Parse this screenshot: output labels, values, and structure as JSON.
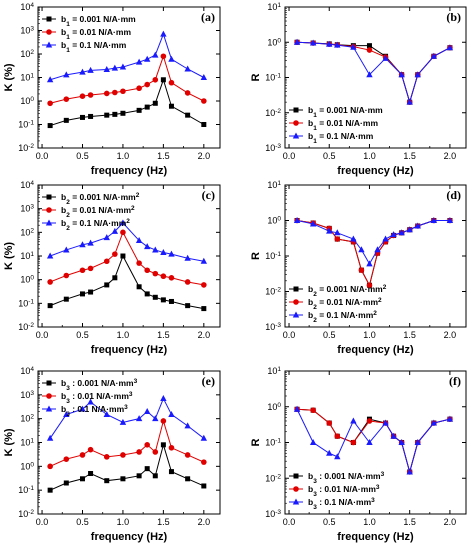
{
  "chart_data": [
    {
      "type": "line",
      "panel_label": "(a)",
      "xlabel": "frequency (Hz)",
      "ylabel": "K (%)",
      "log_y": true,
      "xlim": [
        -0.05,
        2.2
      ],
      "ylim": [
        0.01,
        10000
      ],
      "xticks": [
        0.0,
        0.5,
        1.0,
        1.5,
        2.0
      ],
      "xtick_labels": [
        "0.0",
        "0.5",
        "1.0",
        "1.5",
        "2.0"
      ],
      "yticks": [
        0.01,
        0.1,
        1,
        10,
        100,
        1000,
        10000
      ],
      "ytick_labels": [
        [
          "10",
          "-2"
        ],
        [
          "10",
          "-1"
        ],
        [
          "10",
          "0"
        ],
        [
          "10",
          "1"
        ],
        [
          "10",
          "2"
        ],
        [
          "10",
          "3"
        ],
        [
          "10",
          "4"
        ]
      ],
      "legend_position": "top-left",
      "series": [
        {
          "name": [
            "b",
            "1",
            "= 0.001 N/A·mm"
          ],
          "color": "#000000",
          "marker": "square",
          "x": [
            0.1,
            0.3,
            0.5,
            0.6,
            0.8,
            0.9,
            1.0,
            1.2,
            1.3,
            1.4,
            1.5,
            1.6,
            1.8,
            2.0
          ],
          "values": [
            0.09,
            0.15,
            0.2,
            0.22,
            0.25,
            0.27,
            0.3,
            0.4,
            0.55,
            0.8,
            8,
            0.6,
            0.25,
            0.1
          ]
        },
        {
          "name": [
            "b",
            "1",
            "= 0.01 N/A·mm"
          ],
          "color": "#e00000",
          "marker": "circle",
          "x": [
            0.1,
            0.3,
            0.5,
            0.6,
            0.8,
            0.9,
            1.0,
            1.2,
            1.3,
            1.4,
            1.5,
            1.6,
            1.8,
            2.0
          ],
          "values": [
            0.8,
            1.2,
            1.6,
            1.8,
            2.1,
            2.3,
            2.6,
            3.5,
            5,
            8,
            80,
            6,
            2.2,
            1
          ]
        },
        {
          "name": [
            "b",
            "1",
            "= 0.1 N/A·mm"
          ],
          "color": "#1a1aff",
          "marker": "triangle",
          "x": [
            0.1,
            0.3,
            0.5,
            0.6,
            0.8,
            0.9,
            1.0,
            1.2,
            1.3,
            1.4,
            1.5,
            1.6,
            1.8,
            2.0
          ],
          "values": [
            8,
            13,
            17,
            20,
            22,
            25,
            28,
            45,
            60,
            90,
            700,
            60,
            23,
            10
          ]
        }
      ]
    },
    {
      "type": "line",
      "panel_label": "(b)",
      "xlabel": "frequency (Hz)",
      "ylabel": "R",
      "log_y": true,
      "xlim": [
        -0.05,
        2.2
      ],
      "ylim": [
        0.001,
        10
      ],
      "xticks": [
        0.0,
        0.5,
        1.0,
        1.5,
        2.0
      ],
      "xtick_labels": [
        "0.0",
        "0.5",
        "1.0",
        "1.5",
        "2.0"
      ],
      "yticks": [
        0.001,
        0.01,
        0.1,
        1,
        10
      ],
      "ytick_labels": [
        [
          "10",
          "-3"
        ],
        [
          "10",
          "-2"
        ],
        [
          "10",
          "-1"
        ],
        [
          "10",
          "0"
        ],
        [
          "10",
          "1"
        ]
      ],
      "legend_position": "bottom-left",
      "series": [
        {
          "name": [
            "b",
            "1",
            "= 0.001 N/A·mm"
          ],
          "color": "#000000",
          "marker": "square",
          "x": [
            0.1,
            0.3,
            0.5,
            0.6,
            0.8,
            1.0,
            1.2,
            1.4,
            1.5,
            1.6,
            1.8,
            2.0
          ],
          "values": [
            1.0,
            0.95,
            0.9,
            0.85,
            0.8,
            0.8,
            0.4,
            0.12,
            0.02,
            0.12,
            0.4,
            0.7
          ]
        },
        {
          "name": [
            "b",
            "1",
            "= 0.01 N/A·mm"
          ],
          "color": "#e00000",
          "marker": "circle",
          "x": [
            0.1,
            0.3,
            0.5,
            0.6,
            0.8,
            1.0,
            1.2,
            1.4,
            1.5,
            1.6,
            1.8,
            2.0
          ],
          "values": [
            1.0,
            0.95,
            0.88,
            0.84,
            0.75,
            0.6,
            0.38,
            0.12,
            0.02,
            0.12,
            0.4,
            0.7
          ]
        },
        {
          "name": [
            "b",
            "1",
            "= 0.1 N/A·mm"
          ],
          "color": "#1a1aff",
          "marker": "triangle",
          "x": [
            0.1,
            0.3,
            0.5,
            0.6,
            0.8,
            1.0,
            1.2,
            1.4,
            1.5,
            1.6,
            1.8,
            2.0
          ],
          "values": [
            1.0,
            0.95,
            0.88,
            0.83,
            0.72,
            0.12,
            0.35,
            0.12,
            0.02,
            0.12,
            0.4,
            0.7
          ]
        }
      ]
    },
    {
      "type": "line",
      "panel_label": "(c)",
      "xlabel": "frequency (Hz)",
      "ylabel": "K (%)",
      "log_y": true,
      "xlim": [
        -0.05,
        2.2
      ],
      "ylim": [
        0.01,
        10000
      ],
      "xticks": [
        0.0,
        0.5,
        1.0,
        1.5,
        2.0
      ],
      "xtick_labels": [
        "0.0",
        "0.5",
        "1.0",
        "1.5",
        "2.0"
      ],
      "yticks": [
        0.01,
        0.1,
        1,
        10,
        100,
        1000,
        10000
      ],
      "ytick_labels": [
        [
          "10",
          "-2"
        ],
        [
          "10",
          "-1"
        ],
        [
          "10",
          "0"
        ],
        [
          "10",
          "1"
        ],
        [
          "10",
          "2"
        ],
        [
          "10",
          "3"
        ],
        [
          "10",
          "4"
        ]
      ],
      "legend_position": "top-left",
      "series": [
        {
          "name": [
            "b",
            "2",
            "= 0.001 N/A·mm",
            "2"
          ],
          "color": "#000000",
          "marker": "square",
          "x": [
            0.1,
            0.3,
            0.5,
            0.6,
            0.8,
            0.9,
            1.0,
            1.2,
            1.3,
            1.4,
            1.5,
            1.6,
            1.8,
            2.0
          ],
          "values": [
            0.08,
            0.15,
            0.25,
            0.3,
            0.6,
            1.2,
            10,
            0.5,
            0.25,
            0.18,
            0.14,
            0.12,
            0.08,
            0.06
          ]
        },
        {
          "name": [
            "b",
            "2",
            "= 0.01 N/A·mm",
            "2"
          ],
          "color": "#e00000",
          "marker": "circle",
          "x": [
            0.1,
            0.3,
            0.5,
            0.6,
            0.8,
            0.9,
            1.0,
            1.2,
            1.3,
            1.4,
            1.5,
            1.6,
            1.8,
            2.0
          ],
          "values": [
            0.8,
            1.5,
            2.5,
            3,
            6,
            12,
            100,
            5,
            2.5,
            1.8,
            1.4,
            1.2,
            0.8,
            0.6
          ]
        },
        {
          "name": [
            "b",
            "2",
            "= 0.1 N/A·mm",
            "2"
          ],
          "color": "#1a1aff",
          "marker": "triangle",
          "x": [
            0.1,
            0.3,
            0.5,
            0.6,
            0.8,
            0.9,
            1.0,
            1.2,
            1.3,
            1.4,
            1.5,
            1.6,
            1.8,
            2.0
          ],
          "values": [
            10,
            18,
            30,
            35,
            60,
            110,
            250,
            45,
            25,
            18,
            14,
            12,
            8,
            6
          ]
        }
      ]
    },
    {
      "type": "line",
      "panel_label": "(d)",
      "xlabel": "frequency (Hz)",
      "ylabel": "R",
      "log_y": true,
      "xlim": [
        -0.05,
        2.2
      ],
      "ylim": [
        0.001,
        10
      ],
      "xticks": [
        0.0,
        0.5,
        1.0,
        1.5,
        2.0
      ],
      "xtick_labels": [
        "0.0",
        "0.5",
        "1.0",
        "1.5",
        "2.0"
      ],
      "yticks": [
        0.001,
        0.01,
        0.1,
        1,
        10
      ],
      "ytick_labels": [
        [
          "10",
          "-3"
        ],
        [
          "10",
          "-2"
        ],
        [
          "10",
          "-1"
        ],
        [
          "10",
          "0"
        ],
        [
          "10",
          "1"
        ]
      ],
      "legend_position": "bottom-left",
      "series": [
        {
          "name": [
            "b",
            "2",
            "= 0.001 N/A·mm",
            "2"
          ],
          "color": "#000000",
          "marker": "square",
          "x": [
            0.1,
            0.3,
            0.5,
            0.6,
            0.8,
            0.9,
            1.0,
            1.1,
            1.2,
            1.3,
            1.4,
            1.5,
            1.6,
            1.8,
            2.0
          ],
          "values": [
            1.0,
            0.85,
            0.6,
            0.3,
            0.25,
            0.04,
            0.015,
            0.12,
            0.25,
            0.38,
            0.45,
            0.55,
            0.7,
            1.0,
            1.0
          ]
        },
        {
          "name": [
            "b",
            "2",
            "= 0.01 N/A·mm",
            "2"
          ],
          "color": "#e00000",
          "marker": "circle",
          "x": [
            0.1,
            0.3,
            0.5,
            0.6,
            0.8,
            0.9,
            1.0,
            1.1,
            1.2,
            1.3,
            1.4,
            1.5,
            1.6,
            1.8,
            2.0
          ],
          "values": [
            1.0,
            0.85,
            0.6,
            0.3,
            0.25,
            0.04,
            0.015,
            0.12,
            0.25,
            0.38,
            0.45,
            0.55,
            0.7,
            1.0,
            1.0
          ]
        },
        {
          "name": [
            "b",
            "2",
            "= 0.1 N/A·mm",
            "2"
          ],
          "color": "#1a1aff",
          "marker": "triangle",
          "x": [
            0.1,
            0.3,
            0.5,
            0.6,
            0.8,
            0.9,
            1.0,
            1.1,
            1.2,
            1.3,
            1.4,
            1.5,
            1.6,
            1.8,
            2.0
          ],
          "values": [
            1.0,
            0.8,
            0.5,
            0.45,
            0.3,
            0.15,
            0.06,
            0.15,
            0.3,
            0.4,
            0.45,
            0.55,
            0.7,
            1.0,
            1.0
          ]
        }
      ]
    },
    {
      "type": "line",
      "panel_label": "(e)",
      "xlabel": "frequency (Hz)",
      "ylabel": "K (%)",
      "log_y": true,
      "xlim": [
        -0.05,
        2.2
      ],
      "ylim": [
        0.01,
        10000
      ],
      "xticks": [
        0.0,
        0.5,
        1.0,
        1.5,
        2.0
      ],
      "xtick_labels": [
        "0.0",
        "0.5",
        "1.0",
        "1.5",
        "2.0"
      ],
      "yticks": [
        0.01,
        0.1,
        1,
        10,
        100,
        1000,
        10000
      ],
      "ytick_labels": [
        [
          "10",
          "-2"
        ],
        [
          "10",
          "-1"
        ],
        [
          "10",
          "0"
        ],
        [
          "10",
          "1"
        ],
        [
          "10",
          "2"
        ],
        [
          "10",
          "3"
        ],
        [
          "10",
          "4"
        ]
      ],
      "legend_position": "top-left",
      "series": [
        {
          "name": [
            "b",
            "3",
            ": 0.001 N/A·mm",
            "3"
          ],
          "color": "#000000",
          "marker": "square",
          "x": [
            0.1,
            0.3,
            0.5,
            0.6,
            0.8,
            1.0,
            1.2,
            1.3,
            1.4,
            1.5,
            1.6,
            1.8,
            2.0
          ],
          "values": [
            0.1,
            0.2,
            0.3,
            0.5,
            0.25,
            0.3,
            0.4,
            0.8,
            0.4,
            8,
            0.6,
            0.3,
            0.15
          ]
        },
        {
          "name": [
            "b",
            "3",
            ": 0.01 N/A·mm",
            "3"
          ],
          "color": "#e00000",
          "marker": "circle",
          "x": [
            0.1,
            0.3,
            0.5,
            0.6,
            0.8,
            1.0,
            1.2,
            1.3,
            1.4,
            1.5,
            1.6,
            1.8,
            2.0
          ],
          "values": [
            1,
            2,
            3,
            5,
            2.5,
            3,
            4,
            8,
            4,
            80,
            6,
            3,
            1.5
          ]
        },
        {
          "name": [
            "b",
            "3",
            ": 0.1 N/A·mm",
            "3"
          ],
          "color": "#1a1aff",
          "marker": "triangle",
          "x": [
            0.1,
            0.3,
            0.5,
            0.6,
            0.8,
            1.0,
            1.2,
            1.3,
            1.4,
            1.5,
            1.6,
            1.8,
            2.0
          ],
          "values": [
            15,
            150,
            250,
            500,
            150,
            70,
            100,
            200,
            100,
            700,
            150,
            50,
            15
          ]
        }
      ]
    },
    {
      "type": "line",
      "panel_label": "(f)",
      "xlabel": "frequency (Hz)",
      "ylabel": "R",
      "log_y": true,
      "xlim": [
        -0.05,
        2.2
      ],
      "ylim": [
        0.001,
        10
      ],
      "xticks": [
        0.0,
        0.5,
        1.0,
        1.5,
        2.0
      ],
      "xtick_labels": [
        "0.0",
        "0.5",
        "1.0",
        "1.5",
        "2.0"
      ],
      "yticks": [
        0.001,
        0.01,
        0.1,
        1,
        10
      ],
      "ytick_labels": [
        [
          "10",
          "-3"
        ],
        [
          "10",
          "-2"
        ],
        [
          "10",
          "-1"
        ],
        [
          "10",
          "0"
        ],
        [
          "10",
          "1"
        ]
      ],
      "legend_position": "bottom-left",
      "series": [
        {
          "name": [
            "b",
            "3",
            ": 0.001 N/A·mm",
            "3"
          ],
          "color": "#000000",
          "marker": "square",
          "x": [
            0.1,
            0.3,
            0.5,
            0.6,
            0.8,
            1.0,
            1.2,
            1.3,
            1.4,
            1.5,
            1.6,
            1.8,
            2.0
          ],
          "values": [
            0.85,
            0.8,
            0.35,
            0.15,
            0.1,
            0.45,
            0.35,
            0.15,
            0.1,
            0.015,
            0.1,
            0.35,
            0.45
          ]
        },
        {
          "name": [
            "b",
            "3",
            ": 0.01 N/A·mm",
            "3"
          ],
          "color": "#e00000",
          "marker": "circle",
          "x": [
            0.1,
            0.3,
            0.5,
            0.6,
            0.8,
            1.0,
            1.2,
            1.3,
            1.4,
            1.5,
            1.6,
            1.8,
            2.0
          ],
          "values": [
            0.85,
            0.8,
            0.35,
            0.15,
            0.1,
            0.4,
            0.35,
            0.15,
            0.1,
            0.015,
            0.1,
            0.35,
            0.45
          ]
        },
        {
          "name": [
            "b",
            "3",
            ": 0.1 N/A·mm",
            "3"
          ],
          "color": "#1a1aff",
          "marker": "triangle",
          "x": [
            0.1,
            0.3,
            0.5,
            0.6,
            0.8,
            1.0,
            1.2,
            1.3,
            1.4,
            1.5,
            1.6,
            1.8,
            2.0
          ],
          "values": [
            0.85,
            0.1,
            0.05,
            0.04,
            0.4,
            0.1,
            0.35,
            0.15,
            0.1,
            0.015,
            0.1,
            0.35,
            0.45
          ]
        }
      ]
    }
  ]
}
